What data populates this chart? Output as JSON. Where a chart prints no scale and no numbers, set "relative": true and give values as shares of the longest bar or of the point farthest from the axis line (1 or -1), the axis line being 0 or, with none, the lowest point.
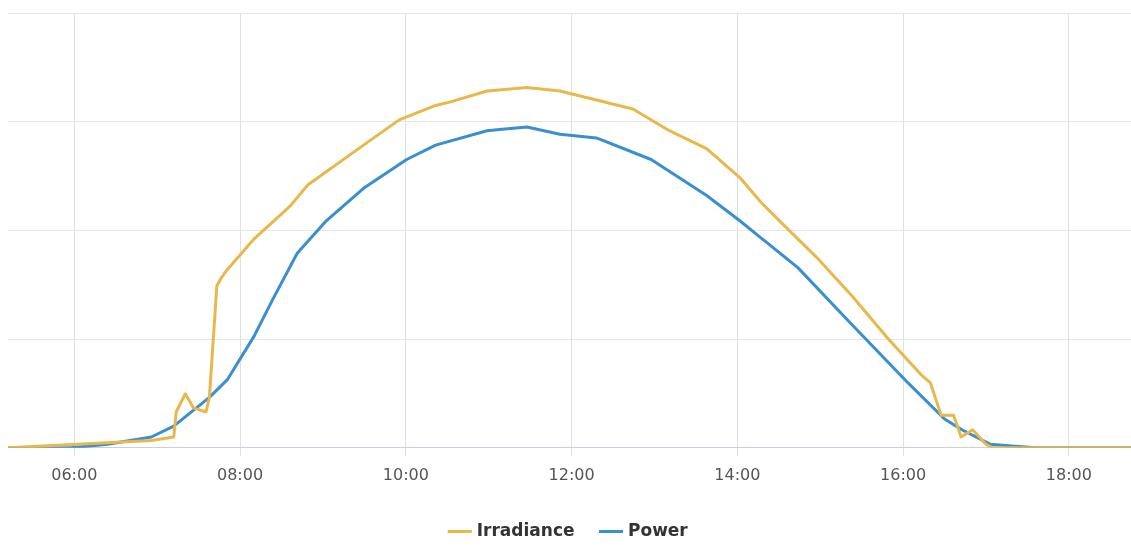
{
  "chart_data": {
    "type": "line",
    "relative": true,
    "xlim": [
      5.2,
      18.75
    ],
    "xticks": [
      {
        "value": 6,
        "label": "06:00"
      },
      {
        "value": 8,
        "label": "08:00"
      },
      {
        "value": 10,
        "label": "10:00"
      },
      {
        "value": 12,
        "label": "12:00"
      },
      {
        "value": 14,
        "label": "14:00"
      },
      {
        "value": 16,
        "label": "16:00"
      },
      {
        "value": 18,
        "label": "18:00"
      }
    ],
    "grid": true,
    "legend": "bottom",
    "marker": "none",
    "line_style": "solid",
    "series": [
      {
        "name": "Irradiance",
        "color": "#e8b84b",
        "x": [
          5.2,
          6.93,
          7.2,
          7.23,
          7.34,
          7.44,
          7.59,
          7.63,
          7.72,
          7.77,
          7.83,
          8.17,
          8.6,
          8.82,
          9.49,
          9.92,
          10.36,
          10.54,
          10.98,
          11.46,
          11.86,
          12.74,
          13.18,
          13.63,
          14.03,
          14.29,
          14.64,
          14.95,
          15.39,
          15.83,
          16.23,
          16.33,
          16.46,
          16.61,
          16.7,
          16.84,
          17,
          17.08,
          18.75
        ],
        "values": [
          0,
          0.02,
          0.03,
          0.1,
          0.15,
          0.11,
          0.1,
          0.14,
          0.45,
          0.47,
          0.49,
          0.58,
          0.67,
          0.73,
          0.84,
          0.91,
          0.95,
          0.96,
          0.99,
          1,
          0.99,
          0.94,
          0.88,
          0.83,
          0.75,
          0.68,
          0.6,
          0.53,
          0.42,
          0.3,
          0.2,
          0.18,
          0.09,
          0.09,
          0.03,
          0.05,
          0.01,
          0,
          0
        ]
      },
      {
        "name": "Power",
        "color": "#3a8fd0",
        "x": [
          5.2,
          5.96,
          6.4,
          6.93,
          7.2,
          7.63,
          7.85,
          8.17,
          8.39,
          8.69,
          9.04,
          9.49,
          10.01,
          10.36,
          10.98,
          11.46,
          11.86,
          12.3,
          12.96,
          13.63,
          14.03,
          14.73,
          15.39,
          16.06,
          16.5,
          16.71,
          17.05,
          17.6,
          18.75
        ],
        "values": [
          0,
          0,
          0.01,
          0.03,
          0.06,
          0.14,
          0.19,
          0.31,
          0.41,
          0.54,
          0.63,
          0.72,
          0.8,
          0.84,
          0.88,
          0.89,
          0.87,
          0.86,
          0.8,
          0.7,
          0.63,
          0.5,
          0.34,
          0.18,
          0.08,
          0.05,
          0.01,
          0,
          0
        ]
      }
    ]
  }
}
